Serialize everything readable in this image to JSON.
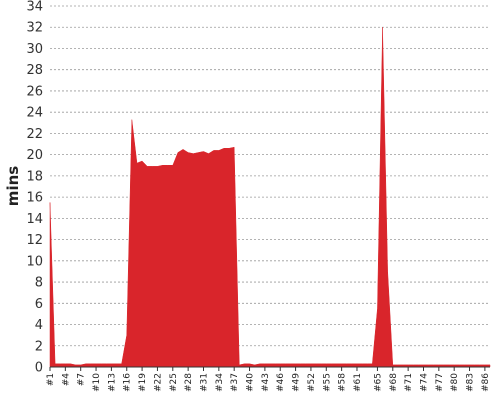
{
  "chart_data": {
    "type": "area",
    "title": "",
    "xlabel": "",
    "ylabel": "mins",
    "ylim": [
      0,
      34
    ],
    "yticks": [
      0,
      2,
      4,
      6,
      8,
      10,
      12,
      14,
      16,
      18,
      20,
      22,
      24,
      26,
      28,
      30,
      32,
      34
    ],
    "grid": true,
    "x": [
      "#1",
      "#2",
      "#3",
      "#4",
      "#5",
      "#6",
      "#7",
      "#8",
      "#9",
      "#10",
      "#11",
      "#12",
      "#13",
      "#14",
      "#15",
      "#16",
      "#17",
      "#18",
      "#19",
      "#20",
      "#21",
      "#22",
      "#23",
      "#24",
      "#25",
      "#26",
      "#27",
      "#28",
      "#29",
      "#30",
      "#31",
      "#32",
      "#33",
      "#34",
      "#35",
      "#36",
      "#37",
      "#38",
      "#39",
      "#40",
      "#41",
      "#42",
      "#43",
      "#44",
      "#45",
      "#46",
      "#47",
      "#48",
      "#49",
      "#50",
      "#51",
      "#52",
      "#53",
      "#54",
      "#55",
      "#56",
      "#57",
      "#58",
      "#59",
      "#60",
      "#61",
      "#62",
      "#63",
      "#64",
      "#65",
      "#66",
      "#67",
      "#68",
      "#69",
      "#70",
      "#71",
      "#72",
      "#73",
      "#74",
      "#75",
      "#76",
      "#77",
      "#78",
      "#79",
      "#80",
      "#81",
      "#82",
      "#83",
      "#84",
      "#85",
      "#86",
      "#87"
    ],
    "xtick_labels": [
      "#1",
      "#4",
      "#7",
      "#10",
      "#13",
      "#16",
      "#19",
      "#22",
      "#25",
      "#28",
      "#31",
      "#34",
      "#37",
      "#40",
      "#43",
      "#46",
      "#49",
      "#52",
      "#55",
      "#58",
      "#61",
      "#65",
      "#68",
      "#71",
      "#74",
      "#77",
      "#80",
      "#83",
      "#86"
    ],
    "series": [
      {
        "color": "#d9252b",
        "values": [
          15.5,
          0.3,
          0.3,
          0.3,
          0.3,
          0.2,
          0.2,
          0.3,
          0.3,
          0.3,
          0.3,
          0.3,
          0.3,
          0.3,
          0.3,
          3.0,
          23.3,
          19.2,
          19.4,
          18.9,
          18.9,
          18.9,
          19.0,
          19.0,
          19.0,
          20.2,
          20.5,
          20.2,
          20.1,
          20.2,
          20.3,
          20.1,
          20.4,
          20.4,
          20.6,
          20.6,
          20.7,
          0.2,
          0.3,
          0.3,
          0.2,
          0.3,
          0.3,
          0.3,
          0.3,
          0.3,
          0.3,
          0.3,
          0.3,
          0.3,
          0.3,
          0.3,
          0.3,
          0.3,
          0.3,
          0.3,
          0.3,
          0.3,
          0.3,
          0.3,
          0.3,
          0.3,
          0.3,
          0.3,
          5.5,
          32.0,
          9.0,
          0.2,
          0.2,
          0.2,
          0.2,
          0.2,
          0.2,
          0.2,
          0.2,
          0.2,
          0.2,
          0.2,
          0.2,
          0.2,
          0.2,
          0.2,
          0.2,
          0.2,
          0.2,
          0.2,
          0.2
        ]
      }
    ]
  }
}
